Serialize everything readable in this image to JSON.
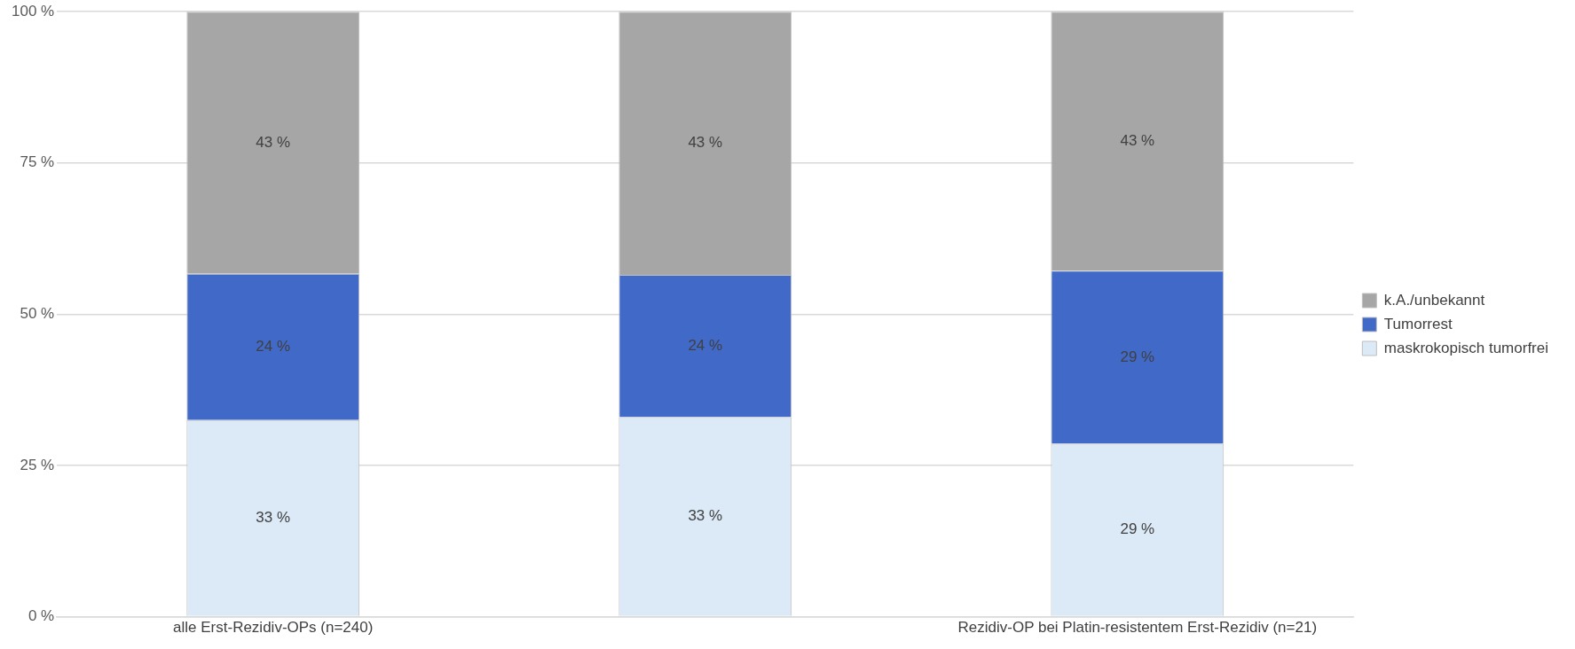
{
  "chart_data": {
    "type": "bar",
    "stacked": true,
    "categories": [
      "alle Erst-Rezidiv-OPs (n=240)",
      null,
      "Rezidiv-OP bei Platin-resistentem Erst-Rezidiv (n=21)"
    ],
    "series": [
      {
        "name": "maskrokopisch tumorfrei",
        "color": "#dce9f6",
        "values": [
          32.5,
          33.0,
          28.6
        ],
        "value_labels": [
          "33 %",
          "33 %",
          "29 %"
        ]
      },
      {
        "name": "Tumorrest",
        "color": "#4169c8",
        "values": [
          24.2,
          23.5,
          28.6
        ],
        "value_labels": [
          "24 %",
          "24 %",
          "29 %"
        ]
      },
      {
        "name": "k.A./unbekannt",
        "color": "#a6a6a6",
        "values": [
          43.3,
          43.5,
          42.8
        ],
        "value_labels": [
          "43 %",
          "43 %",
          "43 %"
        ]
      }
    ],
    "ylim": [
      0,
      100
    ],
    "yticks": [
      {
        "value": 0,
        "label": "0 %"
      },
      {
        "value": 25,
        "label": "25 %"
      },
      {
        "value": 50,
        "label": "50 %"
      },
      {
        "value": 75,
        "label": "75 %"
      },
      {
        "value": 100,
        "label": "100 %"
      }
    ],
    "grid": "y",
    "legend": "right"
  }
}
